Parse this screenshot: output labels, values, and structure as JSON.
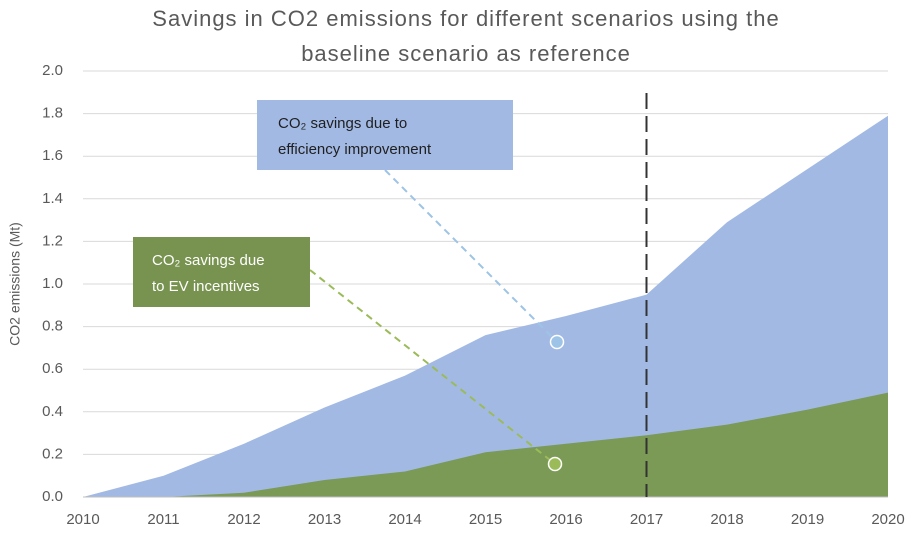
{
  "chart_data": {
    "type": "area",
    "title": [
      "Savings in CO2 emissions  for different scenarios using the",
      "baseline scenario as reference"
    ],
    "y_label": "CO2 emissions (Mt)",
    "x": [
      2010,
      2011,
      2012,
      2013,
      2014,
      2015,
      2016,
      2017,
      2018,
      2019,
      2020
    ],
    "series": [
      {
        "color": "#a2b9e4",
        "values": [
          0,
          0.1,
          0.25,
          0.42,
          0.57,
          0.76,
          0.85,
          0.95,
          1.29,
          1.54,
          1.79
        ]
      },
      {
        "color": "#7a9a56",
        "values": [
          0,
          0,
          0.02,
          0.08,
          0.12,
          0.21,
          0.25,
          0.29,
          0.34,
          0.41,
          0.49
        ]
      }
    ],
    "xlim": [
      2010,
      2020
    ],
    "xticks": [
      2010,
      2011,
      2012,
      2013,
      2014,
      2015,
      2016,
      2017,
      2018,
      2019,
      2020
    ],
    "ylim": [
      0,
      2
    ],
    "yticks": [
      {
        "value": 0,
        "label": "0.0"
      },
      {
        "value": 0.2,
        "label": "0.2"
      },
      {
        "value": 0.4,
        "label": "0.4"
      },
      {
        "value": 0.6,
        "label": "0.6"
      },
      {
        "value": 0.8,
        "label": "0.8"
      },
      {
        "value": 1,
        "label": "1.0"
      },
      {
        "value": 1.2,
        "label": "1.2"
      },
      {
        "value": 1.4,
        "label": "1.4"
      },
      {
        "value": 1.6,
        "label": "1.6"
      },
      {
        "value": 1.8,
        "label": "1.8"
      },
      {
        "value": 2,
        "label": "2.0"
      }
    ],
    "grid": true,
    "vline": 2017,
    "annotations": [
      {
        "lines": [
          "CO₂ savings due to",
          "efficiency improvement"
        ],
        "color": "#a2b9e4",
        "text_color": "#1f1f1f",
        "dot_color": "#9dc3e6"
      },
      {
        "lines": [
          "CO₂ savings due",
          "to EV incentives"
        ],
        "color": "#77934f",
        "text_color": "#ffffff",
        "dot_color": "#9bbb59"
      }
    ]
  }
}
